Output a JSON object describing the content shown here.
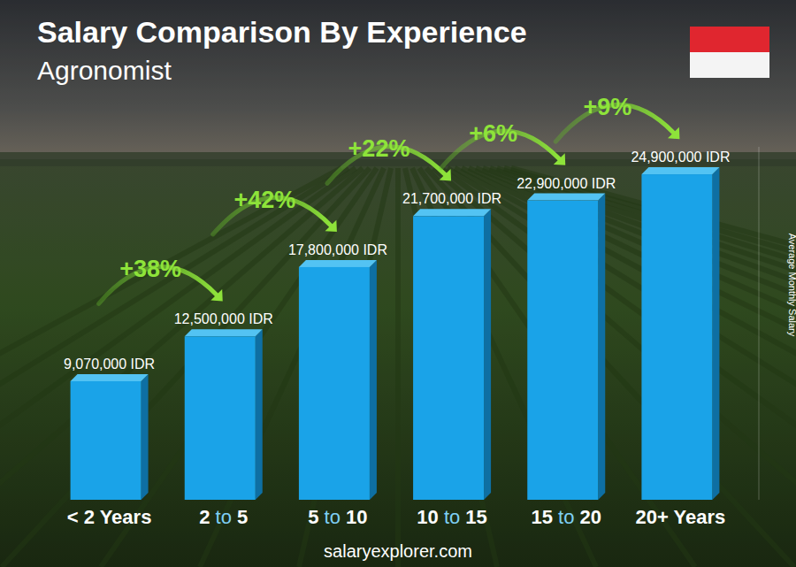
{
  "chart_data": {
    "type": "bar",
    "title": "Salary Comparison By Experience",
    "subtitle": "Agronomist",
    "y_label": "Average Monthly Salary",
    "source": "salaryexplorer.com",
    "categories": [
      "< 2 Years",
      "2 to 5",
      "5 to 10",
      "10 to 15",
      "15 to 20",
      "20+ Years"
    ],
    "values": [
      9070000,
      12500000,
      17800000,
      21700000,
      22900000,
      24900000
    ],
    "value_labels": [
      "9,070,000 IDR",
      "12,500,000 IDR",
      "17,800,000 IDR",
      "21,700,000 IDR",
      "22,900,000 IDR",
      "24,900,000 IDR"
    ],
    "data_labels": true,
    "annotations": [
      "+38%",
      "+42%",
      "+22%",
      "+6%",
      "+9%"
    ],
    "color": "#1aa3e8",
    "ylim": [
      0,
      27000000
    ],
    "tick_labels": "x",
    "grid": false
  }
}
